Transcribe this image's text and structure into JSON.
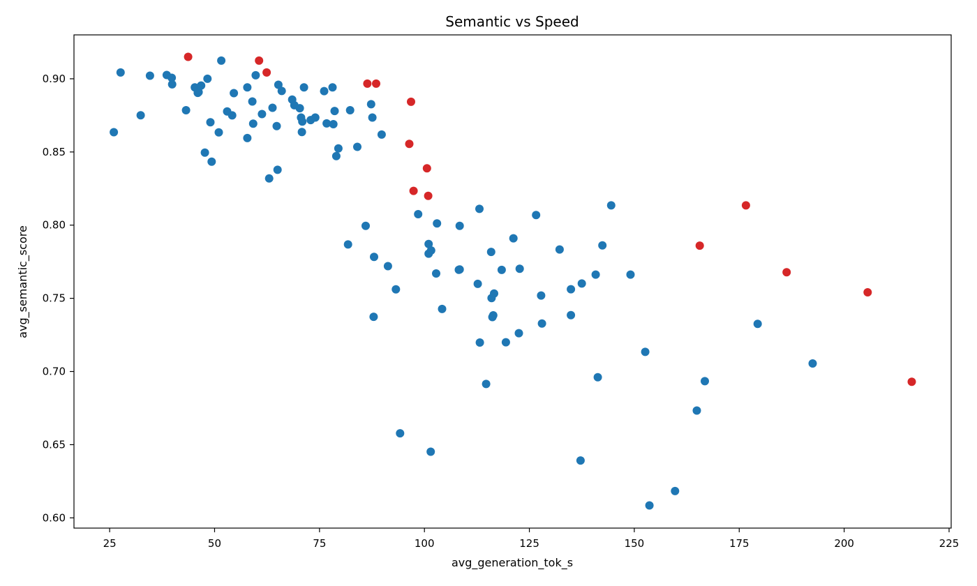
{
  "chart_data": {
    "type": "scatter",
    "title": "Semantic vs Speed",
    "xlabel": "avg_generation_tok_s",
    "ylabel": "avg_semantic_score",
    "xlim": [
      16.5,
      225.5
    ],
    "ylim": [
      0.593,
      0.93
    ],
    "xticks": [
      "25",
      "50",
      "75",
      "100",
      "125",
      "150",
      "175",
      "200",
      "225"
    ],
    "yticks": [
      "0.60",
      "0.65",
      "0.70",
      "0.75",
      "0.80",
      "0.85",
      "0.90"
    ],
    "grid": false,
    "legend": "none",
    "series": [
      {
        "color": "#1f77b4",
        "points": [
          [
            26.0,
            0.8635
          ],
          [
            27.6,
            0.9043
          ],
          [
            32.4,
            0.8751
          ],
          [
            34.6,
            0.9021
          ],
          [
            38.6,
            0.9026
          ],
          [
            39.8,
            0.9007
          ],
          [
            39.9,
            0.8962
          ],
          [
            43.2,
            0.8785
          ],
          [
            45.3,
            0.8941
          ],
          [
            46.0,
            0.8904
          ],
          [
            46.2,
            0.8909
          ],
          [
            46.8,
            0.8954
          ],
          [
            47.7,
            0.8496
          ],
          [
            48.3,
            0.9
          ],
          [
            49.0,
            0.8703
          ],
          [
            49.3,
            0.8434
          ],
          [
            51.0,
            0.8634
          ],
          [
            51.6,
            0.9124
          ],
          [
            53.0,
            0.8777
          ],
          [
            54.2,
            0.875
          ],
          [
            54.6,
            0.8902
          ],
          [
            57.8,
            0.8595
          ],
          [
            57.8,
            0.8941
          ],
          [
            59.0,
            0.8845
          ],
          [
            59.2,
            0.8693
          ],
          [
            59.8,
            0.9024
          ],
          [
            61.3,
            0.8759
          ],
          [
            63.0,
            0.8319
          ],
          [
            63.8,
            0.8802
          ],
          [
            64.8,
            0.8677
          ],
          [
            65.0,
            0.8378
          ],
          [
            65.2,
            0.8959
          ],
          [
            66.0,
            0.8917
          ],
          [
            68.5,
            0.8858
          ],
          [
            69.0,
            0.8819
          ],
          [
            70.3,
            0.8799
          ],
          [
            70.6,
            0.8735
          ],
          [
            70.8,
            0.8636
          ],
          [
            70.9,
            0.8708
          ],
          [
            71.3,
            0.8941
          ],
          [
            72.9,
            0.8718
          ],
          [
            74.0,
            0.8735
          ],
          [
            76.1,
            0.8916
          ],
          [
            76.7,
            0.8695
          ],
          [
            78.1,
            0.8941
          ],
          [
            78.3,
            0.869
          ],
          [
            78.6,
            0.878
          ],
          [
            79.0,
            0.8472
          ],
          [
            79.5,
            0.8524
          ],
          [
            82.3,
            0.8785
          ],
          [
            84.0,
            0.8535
          ],
          [
            86.0,
            0.7995
          ],
          [
            81.8,
            0.7868
          ],
          [
            87.3,
            0.8826
          ],
          [
            87.6,
            0.8735
          ],
          [
            88.0,
            0.7783
          ],
          [
            87.9,
            0.7374
          ],
          [
            89.8,
            0.8619
          ],
          [
            91.3,
            0.772
          ],
          [
            93.2,
            0.7561
          ],
          [
            94.2,
            0.6578
          ],
          [
            98.5,
            0.8075
          ],
          [
            101.0,
            0.7871
          ],
          [
            101.0,
            0.7805
          ],
          [
            101.6,
            0.7827
          ],
          [
            101.5,
            0.6452
          ],
          [
            102.8,
            0.767
          ],
          [
            103.0,
            0.8012
          ],
          [
            104.2,
            0.7427
          ],
          [
            108.2,
            0.7695
          ],
          [
            108.4,
            0.7697
          ],
          [
            108.4,
            0.7995
          ],
          [
            112.7,
            0.7599
          ],
          [
            113.1,
            0.8111
          ],
          [
            113.2,
            0.7198
          ],
          [
            114.7,
            0.6915
          ],
          [
            115.9,
            0.7817
          ],
          [
            116.0,
            0.7502
          ],
          [
            116.2,
            0.7372
          ],
          [
            116.4,
            0.7384
          ],
          [
            116.6,
            0.7533
          ],
          [
            118.4,
            0.7694
          ],
          [
            119.4,
            0.72
          ],
          [
            121.2,
            0.791
          ],
          [
            122.5,
            0.7262
          ],
          [
            122.7,
            0.7702
          ],
          [
            126.6,
            0.8069
          ],
          [
            127.8,
            0.7519
          ],
          [
            128.0,
            0.7328
          ],
          [
            132.2,
            0.7834
          ],
          [
            134.9,
            0.7562
          ],
          [
            134.9,
            0.7385
          ],
          [
            137.5,
            0.7601
          ],
          [
            137.2,
            0.6392
          ],
          [
            140.8,
            0.7662
          ],
          [
            141.3,
            0.6961
          ],
          [
            142.4,
            0.7862
          ],
          [
            144.5,
            0.8135
          ],
          [
            149.1,
            0.7662
          ],
          [
            152.6,
            0.7134
          ],
          [
            153.6,
            0.6085
          ],
          [
            159.7,
            0.6183
          ],
          [
            164.9,
            0.6733
          ],
          [
            166.8,
            0.6934
          ],
          [
            179.4,
            0.7325
          ],
          [
            192.5,
            0.7055
          ]
        ]
      },
      {
        "color": "#d62728",
        "points": [
          [
            43.7,
            0.915
          ],
          [
            60.6,
            0.9124
          ],
          [
            62.4,
            0.9043
          ],
          [
            86.4,
            0.8967
          ],
          [
            88.5,
            0.8967
          ],
          [
            96.4,
            0.8555
          ],
          [
            96.8,
            0.8843
          ],
          [
            97.4,
            0.8234
          ],
          [
            100.6,
            0.8388
          ],
          [
            100.9,
            0.82
          ],
          [
            165.6,
            0.786
          ],
          [
            176.6,
            0.8135
          ],
          [
            186.3,
            0.7678
          ],
          [
            205.6,
            0.7541
          ],
          [
            216.1,
            0.693
          ]
        ]
      }
    ]
  }
}
